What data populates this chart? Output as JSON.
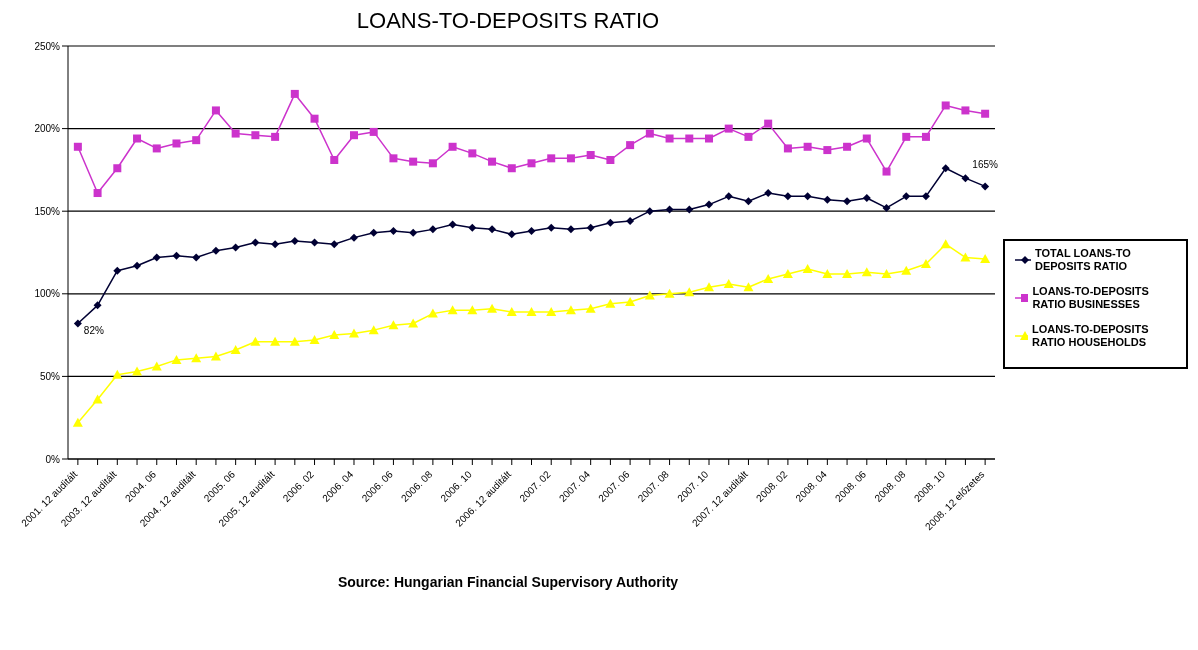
{
  "chart_data": {
    "type": "line",
    "title": "LOANS-TO-DEPOSITS RATIO",
    "categories": [
      "2001. 12 auditált",
      null,
      "2003. 12 auditált",
      null,
      "2004. 06",
      null,
      "2004. 12 auditált",
      null,
      "2005. 06",
      null,
      "2005. 12 auditált",
      null,
      "2006. 02",
      null,
      "2006. 04",
      null,
      "2006. 06",
      null,
      "2006. 08",
      null,
      "2006. 10",
      null,
      "2006. 12 auditált",
      null,
      "2007. 02",
      null,
      "2007. 04",
      null,
      "2007. 06",
      null,
      "2007. 08",
      null,
      "2007. 10",
      null,
      "2007. 12 auditált",
      null,
      "2008. 02",
      null,
      "2008. 04",
      null,
      "2008. 06",
      null,
      "2008. 08",
      null,
      "2008. 10",
      null,
      "2008. 12 előzetes"
    ],
    "series": [
      {
        "name": "TOTAL LOANS-TO DEPOSITS RATIO",
        "color": "#000033",
        "marker": "diamond",
        "values": [
          82,
          93,
          114,
          117,
          122,
          123,
          122,
          126,
          128,
          131,
          130,
          132,
          131,
          130,
          134,
          137,
          138,
          137,
          139,
          142,
          140,
          139,
          136,
          138,
          140,
          139,
          140,
          143,
          144,
          150,
          151,
          151,
          154,
          159,
          156,
          161,
          159,
          159,
          157,
          156,
          158,
          152,
          159,
          159,
          176,
          170,
          165
        ],
        "value_labels": [
          "82%",
          null,
          null,
          null,
          null,
          null,
          null,
          null,
          null,
          null,
          null,
          null,
          null,
          null,
          null,
          null,
          null,
          null,
          null,
          null,
          null,
          null,
          null,
          null,
          null,
          null,
          null,
          null,
          null,
          null,
          null,
          null,
          null,
          null,
          null,
          null,
          null,
          null,
          null,
          null,
          null,
          null,
          null,
          null,
          null,
          null,
          "165%"
        ]
      },
      {
        "name": "LOANS-TO-DEPOSITS RATIO BUSINESSES",
        "color": "#cc33cc",
        "marker": "square",
        "values": [
          189,
          161,
          176,
          194,
          188,
          191,
          193,
          211,
          197,
          196,
          195,
          221,
          206,
          181,
          196,
          198,
          182,
          180,
          179,
          189,
          185,
          180,
          176,
          179,
          182,
          182,
          184,
          181,
          190,
          197,
          194,
          194,
          194,
          200,
          195,
          203,
          188,
          189,
          187,
          189,
          194,
          174,
          195,
          195,
          214,
          211,
          209
        ]
      },
      {
        "name": "LOANS-TO-DEPOSITS RATIO HOUSEHOLDS",
        "color": "#ffff00",
        "marker": "triangle",
        "values": [
          22,
          36,
          51,
          53,
          56,
          60,
          61,
          62,
          66,
          71,
          71,
          71,
          72,
          75,
          76,
          78,
          81,
          82,
          88,
          90,
          90,
          91,
          89,
          89,
          89,
          90,
          91,
          94,
          95,
          99,
          100,
          101,
          104,
          106,
          104,
          109,
          112,
          115,
          112,
          112,
          113,
          112,
          114,
          118,
          130,
          122,
          121
        ]
      }
    ],
    "ylim": [
      0,
      250
    ],
    "yticks": [
      {
        "value": 0,
        "label": "0%"
      },
      {
        "value": 50,
        "label": "50%"
      },
      {
        "value": 100,
        "label": "100%"
      },
      {
        "value": 150,
        "label": "150%"
      },
      {
        "value": 200,
        "label": "200%"
      },
      {
        "value": 250,
        "label": "250%"
      }
    ],
    "grid": "y",
    "legend": "right",
    "annotations": [
      "Source: Hungarian Financial Supervisory Authority"
    ]
  }
}
